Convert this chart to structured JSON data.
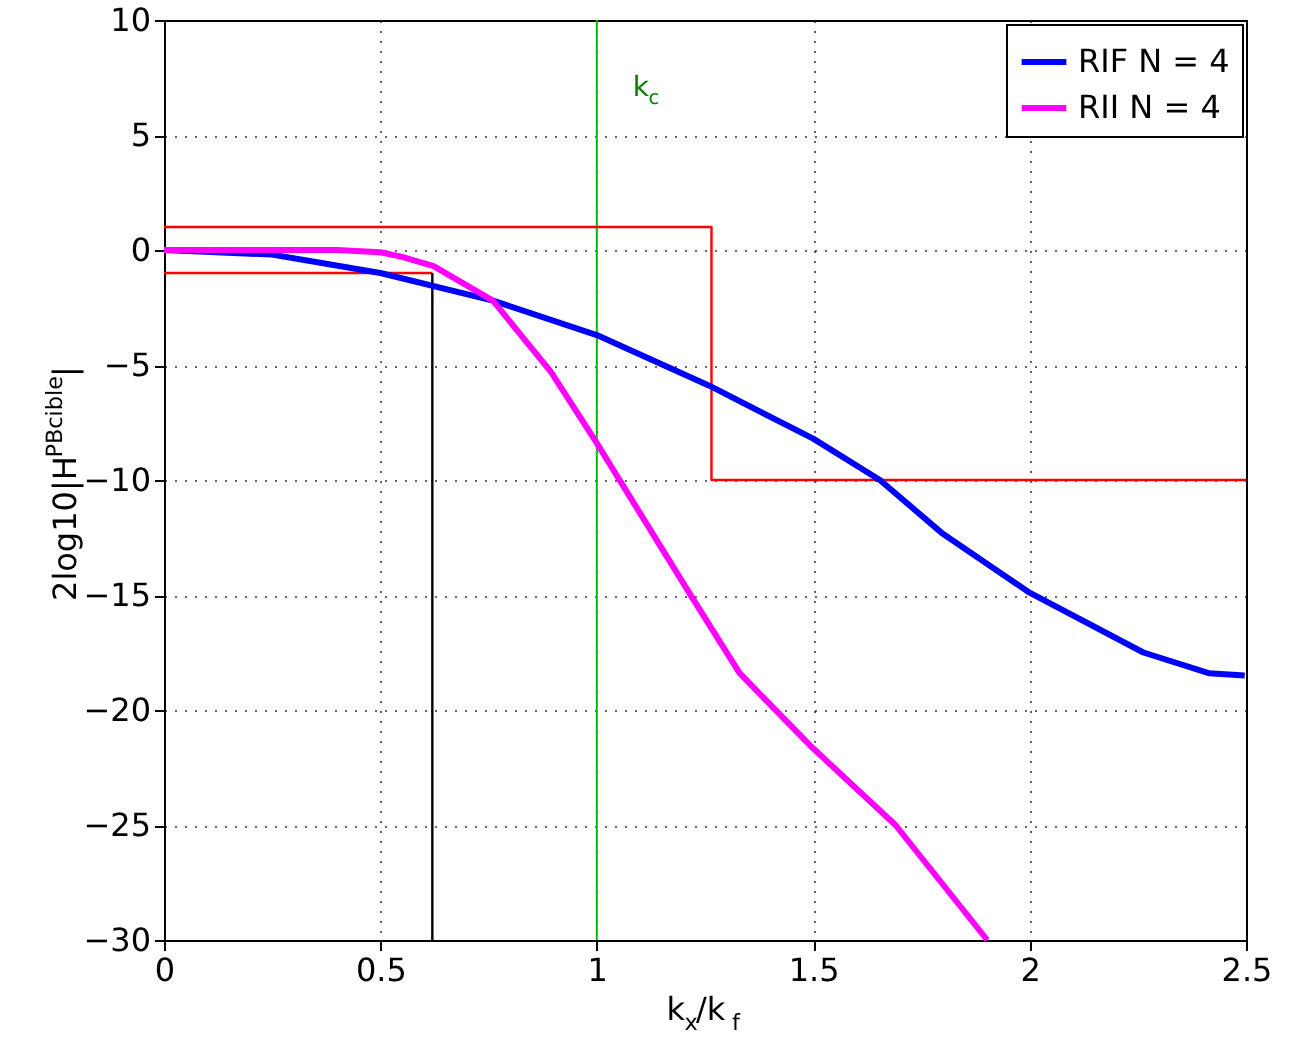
{
  "chart_data": {
    "type": "line",
    "xlabel": "k$_{x}$/k$_{f}$",
    "ylabel": "2log10|H$^{PBcible}$|",
    "xlim": [
      0,
      2.5
    ],
    "ylim": [
      -30,
      10
    ],
    "xticks": [
      0,
      0.5,
      1,
      1.5,
      2,
      2.5
    ],
    "yticks": [
      -30,
      -25,
      -20,
      -15,
      -10,
      -5,
      0,
      5,
      10
    ],
    "grid": true,
    "legend": "top right",
    "line_style": "solid",
    "marker": "none",
    "ref_lines": [
      {
        "axis": "x",
        "value": 1,
        "label": "k$_{c}$",
        "color": "#00c000"
      }
    ],
    "series": [
      {
        "color": "#ff0000",
        "x": [
          0,
          1.265,
          1.265,
          2.5
        ],
        "values": [
          1,
          1,
          -10,
          -10
        ]
      },
      {
        "color": "#ff0000",
        "x": [
          0,
          0.62
        ],
        "values": [
          -1,
          -1
        ]
      },
      {
        "color": "#000000",
        "x": [
          0.62,
          0.62
        ],
        "values": [
          -1,
          -30
        ]
      },
      {
        "name": "RIF N = 4",
        "color": "#0000ff",
        "x": [
          0,
          0.25,
          0.5,
          0.76,
          1.0,
          1.26,
          1.5,
          1.654,
          1.797,
          2.0,
          2.263,
          2.414,
          2.497
        ],
        "values": [
          0,
          -0.2,
          -1.0,
          -2.2,
          -3.7,
          -5.9,
          -8.2,
          -10.0,
          -12.3,
          -14.9,
          -17.5,
          -18.4,
          -18.5
        ]
      },
      {
        "name": "RII N = 4",
        "color": "#ff00ff",
        "x": [
          0,
          0.4,
          0.5,
          0.55,
          0.623,
          0.76,
          0.894,
          1.0,
          1.22,
          1.33,
          1.496,
          1.69,
          1.902
        ],
        "values": [
          0,
          0,
          -0.1,
          -0.3,
          -0.7,
          -2.2,
          -5.3,
          -8.4,
          -15.1,
          -18.4,
          -21.6,
          -25.0,
          -30
        ]
      }
    ]
  }
}
